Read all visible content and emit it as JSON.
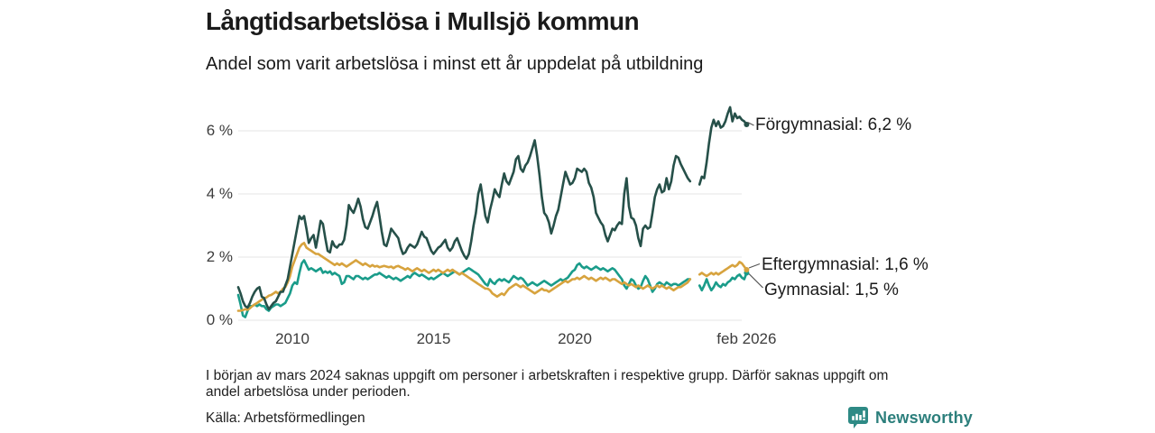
{
  "header": {
    "title": "Långtidsarbetslösa i Mullsjö kommun",
    "subtitle": "Andel som varit arbetslösa i minst ett år uppdelat på utbildning"
  },
  "footer": {
    "note_line1": "I början av mars 2024 saknas uppgift om personer i arbetskraften i respektive grupp. Därför saknas uppgift om",
    "note_line2": "andel arbetslösa under perioden.",
    "source": "Källa: Arbetsförmedlingen"
  },
  "branding": {
    "logo_text": "Newsworthy",
    "logo_text_color": "#2c7f7c",
    "logo_icon": "bar-chart-speech-bubble-icon",
    "logo_icon_color": "#2e8a85"
  },
  "chart_data": {
    "type": "line",
    "title": "Långtidsarbetslösa i Mullsjö kommun",
    "subtitle": "Andel som varit arbetslösa i minst ett år uppdelat på utbildning",
    "unit": "%",
    "grid": true,
    "grid_color": "#e4e4e4",
    "connector_color": "#555555",
    "x_start_year_frac": 2008.083,
    "x_step_years": 0.083333,
    "xlim": [
      2008.0,
      2026.25
    ],
    "ylim": [
      0,
      7
    ],
    "gap_period": "mars 2024",
    "x_ticks": [
      {
        "label": "2010",
        "year": 2010
      },
      {
        "label": "2015",
        "year": 2015
      },
      {
        "label": "2020",
        "year": 2020
      },
      {
        "label": "feb 2026",
        "year": 2026.083
      }
    ],
    "y_ticks": [
      {
        "label": "0 %",
        "value": 0
      },
      {
        "label": "2 %",
        "value": 2
      },
      {
        "label": "4 %",
        "value": 4
      },
      {
        "label": "6 %",
        "value": 6
      }
    ],
    "series": [
      {
        "name": "Gymnasial",
        "end_label": "Gymnasial: 1,5 %",
        "end_value": 1.5,
        "color": "#1a9c8a",
        "values": [
          0.8,
          0.5,
          0.15,
          0.1,
          0.3,
          0.45,
          0.45,
          0.5,
          0.45,
          0.5,
          0.45,
          0.45,
          0.35,
          0.3,
          0.4,
          0.45,
          0.5,
          0.5,
          0.45,
          0.5,
          0.55,
          0.7,
          0.85,
          1.1,
          1.2,
          1.15,
          1.5,
          1.8,
          1.9,
          1.75,
          1.6,
          1.65,
          1.6,
          1.55,
          1.6,
          1.65,
          1.5,
          1.55,
          1.5,
          1.55,
          1.45,
          1.5,
          1.45,
          1.4,
          1.15,
          1.2,
          1.4,
          1.4,
          1.35,
          1.3,
          1.4,
          1.4,
          1.35,
          1.3,
          1.35,
          1.3,
          1.35,
          1.4,
          1.45,
          1.45,
          1.5,
          1.45,
          1.4,
          1.35,
          1.4,
          1.35,
          1.3,
          1.35,
          1.3,
          1.25,
          1.3,
          1.35,
          1.4,
          1.35,
          1.45,
          1.5,
          1.45,
          1.4,
          1.45,
          1.4,
          1.35,
          1.3,
          1.35,
          1.3,
          1.35,
          1.4,
          1.45,
          1.5,
          1.45,
          1.4,
          1.45,
          1.5,
          1.55,
          1.5,
          1.45,
          1.5,
          1.55,
          1.6,
          1.65,
          1.6,
          1.55,
          1.5,
          1.45,
          1.35,
          1.25,
          1.15,
          1.1,
          1.3,
          1.2,
          1.15,
          1.25,
          1.3,
          1.25,
          1.3,
          1.25,
          1.2,
          1.3,
          1.4,
          1.35,
          1.3,
          1.35,
          1.3,
          1.2,
          1.1,
          1.15,
          1.2,
          1.15,
          1.1,
          1.15,
          1.2,
          1.25,
          1.2,
          1.15,
          1.1,
          1.15,
          1.2,
          1.25,
          1.3,
          1.25,
          1.3,
          1.35,
          1.45,
          1.55,
          1.6,
          1.75,
          1.8,
          1.7,
          1.65,
          1.7,
          1.65,
          1.6,
          1.65,
          1.7,
          1.65,
          1.6,
          1.65,
          1.6,
          1.55,
          1.6,
          1.65,
          1.6,
          1.5,
          1.4,
          1.3,
          1.1,
          1.0,
          1.15,
          1.3,
          1.25,
          1.1,
          1.0,
          1.05,
          1.25,
          1.4,
          1.3,
          1.1,
          0.9,
          1.0,
          1.15,
          1.2,
          1.15,
          1.1,
          1.2,
          1.15,
          1.1,
          1.15,
          1.15,
          1.1,
          1.15,
          1.2,
          1.25,
          1.3,
          1.3,
          null,
          null,
          null,
          1.1,
          0.95,
          1.1,
          1.3,
          1.1,
          0.95,
          1.05,
          1.2,
          1.1,
          1.05,
          1.15,
          1.1,
          1.2,
          1.25,
          1.35,
          1.3,
          1.4,
          1.45,
          1.35,
          1.3,
          1.5
        ]
      },
      {
        "name": "Eftergymnasial",
        "end_label": "Eftergymnasial: 1,6 %",
        "end_value": 1.6,
        "color": "#d7a33e",
        "values": [
          0.3,
          0.3,
          0.32,
          0.35,
          0.33,
          0.38,
          0.45,
          0.5,
          0.55,
          0.6,
          0.65,
          0.7,
          0.72,
          0.78,
          0.8,
          0.85,
          0.9,
          0.85,
          0.9,
          1.0,
          1.05,
          1.2,
          1.4,
          1.7,
          1.9,
          2.1,
          2.3,
          2.4,
          2.45,
          2.3,
          2.25,
          2.2,
          2.15,
          2.1,
          2.1,
          2.05,
          2.0,
          1.95,
          1.9,
          1.85,
          1.8,
          1.75,
          1.8,
          1.75,
          1.8,
          1.75,
          1.7,
          1.75,
          1.8,
          1.85,
          1.9,
          1.85,
          1.8,
          1.75,
          1.8,
          1.75,
          1.7,
          1.75,
          1.7,
          1.72,
          1.68,
          1.7,
          1.72,
          1.7,
          1.68,
          1.7,
          1.65,
          1.7,
          1.72,
          1.68,
          1.65,
          1.6,
          1.65,
          1.6,
          1.55,
          1.6,
          1.65,
          1.6,
          1.55,
          1.6,
          1.55,
          1.5,
          1.55,
          1.6,
          1.55,
          1.6,
          1.55,
          1.5,
          1.55,
          1.6,
          1.55,
          1.6,
          1.55,
          1.5,
          1.45,
          1.5,
          1.45,
          1.4,
          1.35,
          1.3,
          1.25,
          1.2,
          1.15,
          1.1,
          1.05,
          1.0,
          1.0,
          0.95,
          0.85,
          0.8,
          0.75,
          0.8,
          0.85,
          0.8,
          0.9,
          1.0,
          1.05,
          1.1,
          1.15,
          1.1,
          1.05,
          1.1,
          1.05,
          1.0,
          0.95,
          0.9,
          0.85,
          0.9,
          0.95,
          1.0,
          0.95,
          0.95,
          0.9,
          0.95,
          1.0,
          1.05,
          1.1,
          1.15,
          1.2,
          1.25,
          1.2,
          1.25,
          1.3,
          1.3,
          1.35,
          1.3,
          1.35,
          1.4,
          1.35,
          1.3,
          1.35,
          1.3,
          1.25,
          1.3,
          1.35,
          1.3,
          1.35,
          1.3,
          1.25,
          1.3,
          1.3,
          1.25,
          1.2,
          1.15,
          1.2,
          1.15,
          1.1,
          1.15,
          1.1,
          1.05,
          1.1,
          1.05,
          1.0,
          1.05,
          1.1,
          1.05,
          1.0,
          1.05,
          1.1,
          1.05,
          1.1,
          1.05,
          1.0,
          1.05,
          1.0,
          0.95,
          1.0,
          1.05,
          1.05,
          1.1,
          1.15,
          1.2,
          1.3,
          null,
          null,
          null,
          1.45,
          1.5,
          1.45,
          1.4,
          1.45,
          1.5,
          1.45,
          1.5,
          1.45,
          1.5,
          1.55,
          1.6,
          1.65,
          1.7,
          1.75,
          1.7,
          1.75,
          1.85,
          1.8,
          1.7,
          1.6
        ]
      },
      {
        "name": "Förgymnasial",
        "end_label": "Förgymnasial: 6,2 %",
        "end_value": 6.2,
        "color": "#265049",
        "values": [
          1.05,
          0.85,
          0.6,
          0.45,
          0.4,
          0.55,
          0.75,
          0.9,
          1.0,
          1.05,
          0.75,
          0.7,
          0.5,
          0.35,
          0.45,
          0.55,
          0.6,
          0.75,
          0.9,
          0.9,
          1.1,
          1.3,
          1.7,
          2.1,
          2.5,
          2.9,
          3.3,
          3.2,
          3.3,
          2.9,
          2.45,
          2.6,
          2.7,
          2.3,
          2.7,
          3.15,
          3.05,
          2.6,
          2.2,
          2.15,
          2.5,
          2.35,
          2.3,
          2.4,
          2.4,
          2.55,
          3.0,
          3.65,
          3.5,
          3.4,
          3.6,
          3.85,
          3.6,
          3.2,
          2.95,
          2.9,
          3.1,
          3.3,
          3.55,
          3.75,
          3.3,
          2.8,
          2.4,
          2.35,
          2.6,
          2.9,
          2.8,
          2.7,
          2.6,
          2.3,
          2.1,
          2.15,
          2.3,
          2.4,
          2.35,
          2.3,
          2.4,
          2.6,
          2.8,
          2.65,
          2.6,
          2.4,
          2.2,
          2.1,
          2.2,
          2.3,
          2.35,
          2.45,
          2.55,
          2.3,
          2.2,
          2.3,
          2.5,
          2.6,
          2.4,
          2.2,
          2.05,
          1.95,
          2.1,
          2.5,
          3.0,
          3.4,
          4.0,
          4.3,
          3.8,
          3.3,
          3.1,
          3.5,
          3.8,
          4.15,
          4.0,
          3.9,
          4.3,
          4.65,
          4.4,
          4.3,
          4.5,
          4.7,
          5.1,
          5.2,
          4.8,
          4.7,
          4.9,
          5.0,
          5.2,
          5.45,
          5.7,
          5.2,
          4.6,
          3.9,
          3.4,
          3.3,
          3.1,
          2.75,
          3.0,
          3.3,
          3.5,
          3.9,
          4.3,
          4.7,
          4.5,
          4.3,
          4.35,
          4.5,
          4.8,
          4.75,
          4.7,
          4.8,
          4.7,
          4.35,
          4.2,
          3.9,
          3.4,
          3.25,
          3.1,
          3.0,
          2.7,
          2.5,
          2.7,
          2.9,
          2.85,
          3.0,
          3.1,
          3.05,
          4.0,
          4.5,
          3.6,
          3.25,
          3.2,
          3.0,
          2.6,
          2.35,
          2.9,
          3.0,
          2.9,
          2.95,
          3.4,
          3.9,
          4.15,
          4.3,
          4.05,
          4.1,
          4.5,
          4.15,
          4.4,
          4.9,
          5.2,
          5.15,
          4.95,
          4.8,
          4.65,
          4.5,
          4.4,
          null,
          null,
          null,
          4.3,
          4.55,
          4.5,
          5.0,
          5.6,
          6.1,
          6.35,
          6.15,
          6.3,
          6.1,
          6.15,
          6.3,
          6.55,
          6.75,
          6.3,
          6.55,
          6.4,
          6.45,
          6.35,
          6.3,
          6.2
        ]
      }
    ]
  }
}
